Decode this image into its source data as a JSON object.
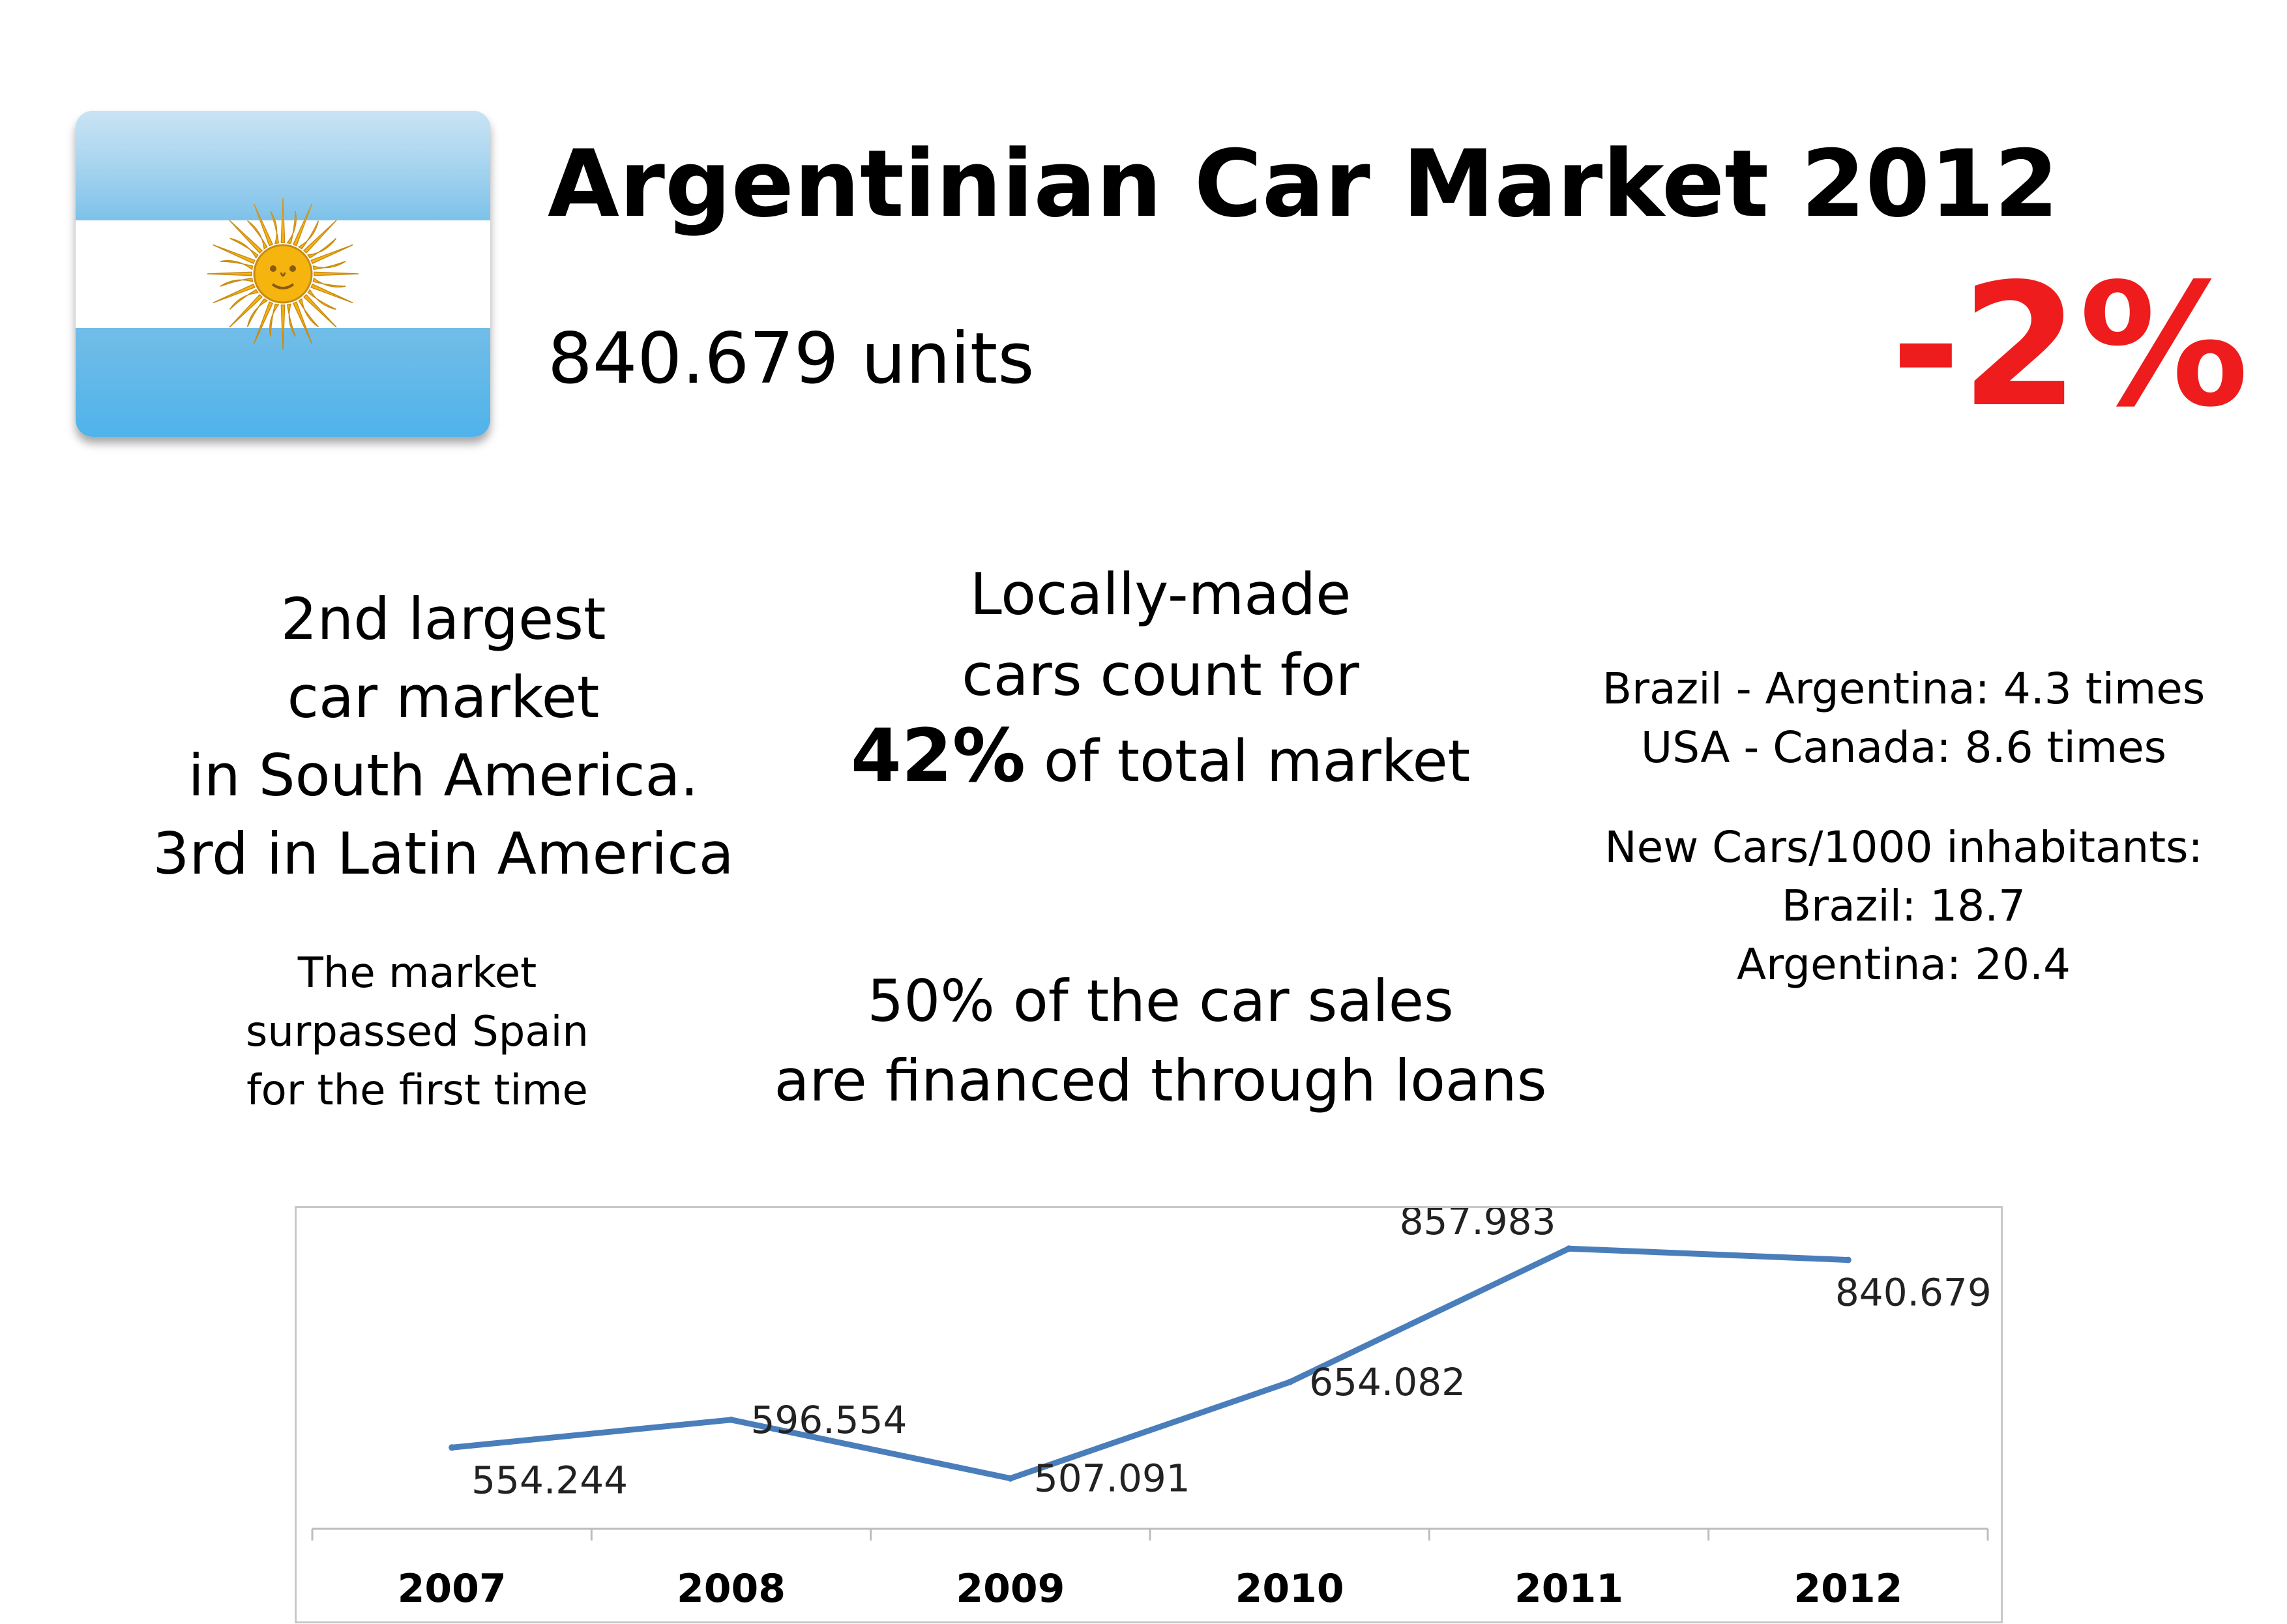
{
  "header": {
    "title": "Argentinian Car Market 2012",
    "units": "840.679 units",
    "change": "-2%"
  },
  "colors": {
    "accent_red": "#ee1c1c",
    "flag_blue": "#74acdf",
    "sun_gold": "#f6b40e",
    "line_blue": "#4a7ebb"
  },
  "icons": {
    "flag": "argentina-flag-icon",
    "sun": "sun-of-may-icon"
  },
  "facts": {
    "ranking": [
      "2nd largest",
      "car market",
      "in South America.",
      "3rd in Latin America"
    ],
    "spain": [
      "The market",
      "surpassed Spain",
      "for the first time"
    ],
    "local_line1": "Locally-made",
    "local_line2": "cars count for",
    "local_pct": "42%",
    "local_rest": " of total market",
    "loans": [
      "50% of the car sales",
      "are financed through loans"
    ],
    "ratios": [
      "Brazil - Argentina: 4.3 times",
      "USA - Canada: 8.6 times"
    ],
    "per_capita": [
      "New Cars/1000 inhabitants:",
      "Brazil: 18.7",
      "Argentina: 20.4"
    ]
  },
  "chart_data": {
    "type": "line",
    "categories": [
      "2007",
      "2008",
      "2009",
      "2010",
      "2011",
      "2012"
    ],
    "series": [
      {
        "values": [
          554.244,
          596.554,
          507.091,
          654.082,
          857.983,
          840.679
        ]
      }
    ],
    "data_labels": [
      "554.244",
      "596.554",
      "507.091",
      "654.082",
      "857.983",
      "840.679"
    ],
    "title": "",
    "xlabel": "",
    "ylabel": "",
    "ylim": [
      450,
      900
    ],
    "grid": false,
    "legend": "none"
  }
}
